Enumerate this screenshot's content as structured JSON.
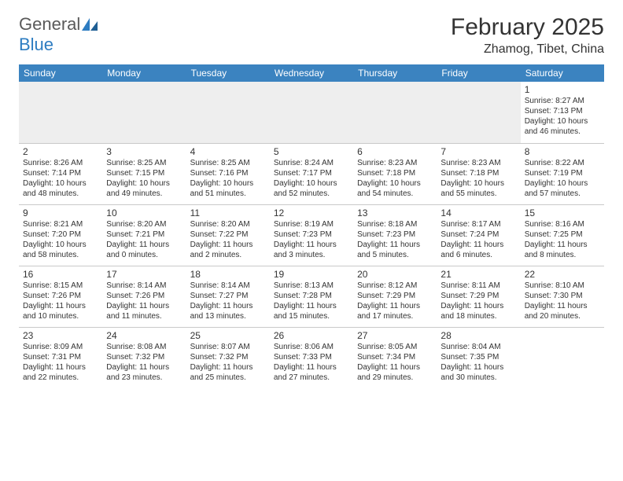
{
  "brand": {
    "general": "General",
    "blue": "Blue"
  },
  "title": "February 2025",
  "location": "Zhamog, Tibet, China",
  "header_bg": "#3b83c0",
  "header_fg": "#ffffff",
  "divider_color": "#c9c9c9",
  "empty_bg": "#eeeeee",
  "text_color": "#333333",
  "days": [
    "Sunday",
    "Monday",
    "Tuesday",
    "Wednesday",
    "Thursday",
    "Friday",
    "Saturday"
  ],
  "weeks": [
    [
      null,
      null,
      null,
      null,
      null,
      null,
      {
        "n": "1",
        "sr": "8:27 AM",
        "ss": "7:13 PM",
        "dl": "10 hours and 46 minutes."
      }
    ],
    [
      {
        "n": "2",
        "sr": "8:26 AM",
        "ss": "7:14 PM",
        "dl": "10 hours and 48 minutes."
      },
      {
        "n": "3",
        "sr": "8:25 AM",
        "ss": "7:15 PM",
        "dl": "10 hours and 49 minutes."
      },
      {
        "n": "4",
        "sr": "8:25 AM",
        "ss": "7:16 PM",
        "dl": "10 hours and 51 minutes."
      },
      {
        "n": "5",
        "sr": "8:24 AM",
        "ss": "7:17 PM",
        "dl": "10 hours and 52 minutes."
      },
      {
        "n": "6",
        "sr": "8:23 AM",
        "ss": "7:18 PM",
        "dl": "10 hours and 54 minutes."
      },
      {
        "n": "7",
        "sr": "8:23 AM",
        "ss": "7:18 PM",
        "dl": "10 hours and 55 minutes."
      },
      {
        "n": "8",
        "sr": "8:22 AM",
        "ss": "7:19 PM",
        "dl": "10 hours and 57 minutes."
      }
    ],
    [
      {
        "n": "9",
        "sr": "8:21 AM",
        "ss": "7:20 PM",
        "dl": "10 hours and 58 minutes."
      },
      {
        "n": "10",
        "sr": "8:20 AM",
        "ss": "7:21 PM",
        "dl": "11 hours and 0 minutes."
      },
      {
        "n": "11",
        "sr": "8:20 AM",
        "ss": "7:22 PM",
        "dl": "11 hours and 2 minutes."
      },
      {
        "n": "12",
        "sr": "8:19 AM",
        "ss": "7:23 PM",
        "dl": "11 hours and 3 minutes."
      },
      {
        "n": "13",
        "sr": "8:18 AM",
        "ss": "7:23 PM",
        "dl": "11 hours and 5 minutes."
      },
      {
        "n": "14",
        "sr": "8:17 AM",
        "ss": "7:24 PM",
        "dl": "11 hours and 6 minutes."
      },
      {
        "n": "15",
        "sr": "8:16 AM",
        "ss": "7:25 PM",
        "dl": "11 hours and 8 minutes."
      }
    ],
    [
      {
        "n": "16",
        "sr": "8:15 AM",
        "ss": "7:26 PM",
        "dl": "11 hours and 10 minutes."
      },
      {
        "n": "17",
        "sr": "8:14 AM",
        "ss": "7:26 PM",
        "dl": "11 hours and 11 minutes."
      },
      {
        "n": "18",
        "sr": "8:14 AM",
        "ss": "7:27 PM",
        "dl": "11 hours and 13 minutes."
      },
      {
        "n": "19",
        "sr": "8:13 AM",
        "ss": "7:28 PM",
        "dl": "11 hours and 15 minutes."
      },
      {
        "n": "20",
        "sr": "8:12 AM",
        "ss": "7:29 PM",
        "dl": "11 hours and 17 minutes."
      },
      {
        "n": "21",
        "sr": "8:11 AM",
        "ss": "7:29 PM",
        "dl": "11 hours and 18 minutes."
      },
      {
        "n": "22",
        "sr": "8:10 AM",
        "ss": "7:30 PM",
        "dl": "11 hours and 20 minutes."
      }
    ],
    [
      {
        "n": "23",
        "sr": "8:09 AM",
        "ss": "7:31 PM",
        "dl": "11 hours and 22 minutes."
      },
      {
        "n": "24",
        "sr": "8:08 AM",
        "ss": "7:32 PM",
        "dl": "11 hours and 23 minutes."
      },
      {
        "n": "25",
        "sr": "8:07 AM",
        "ss": "7:32 PM",
        "dl": "11 hours and 25 minutes."
      },
      {
        "n": "26",
        "sr": "8:06 AM",
        "ss": "7:33 PM",
        "dl": "11 hours and 27 minutes."
      },
      {
        "n": "27",
        "sr": "8:05 AM",
        "ss": "7:34 PM",
        "dl": "11 hours and 29 minutes."
      },
      {
        "n": "28",
        "sr": "8:04 AM",
        "ss": "7:35 PM",
        "dl": "11 hours and 30 minutes."
      },
      null
    ]
  ],
  "labels": {
    "sunrise": "Sunrise: ",
    "sunset": "Sunset: ",
    "daylight": "Daylight: "
  }
}
